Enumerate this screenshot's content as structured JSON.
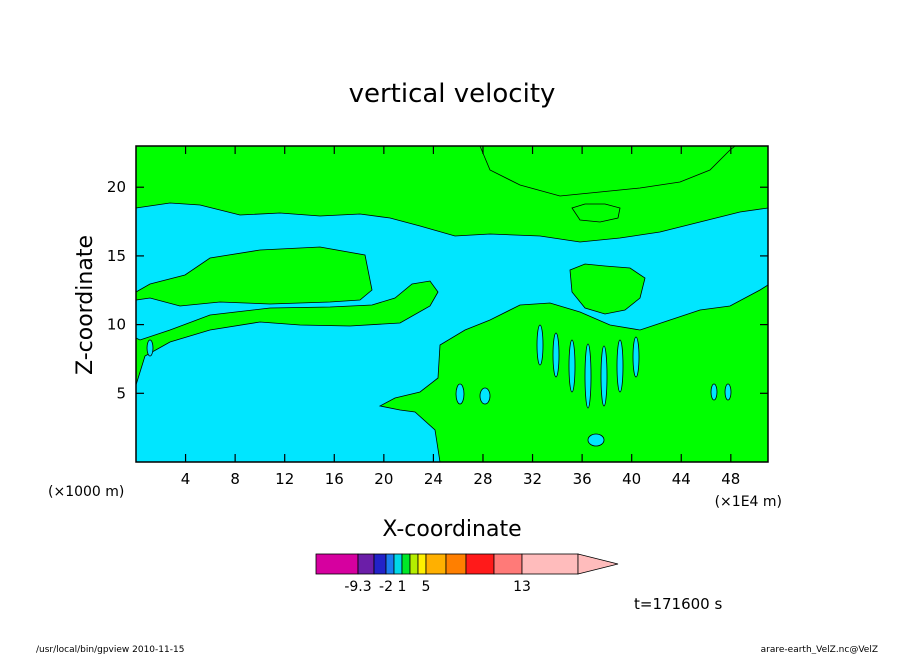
{
  "chart_data": {
    "type": "heatmap",
    "title": "vertical velocity",
    "xlabel": "X-coordinate",
    "ylabel": "Z-coordinate",
    "x_unit": "(×1000 m)",
    "x_scale_note": "(×1E4 m)",
    "xlim": [
      0,
      51
    ],
    "ylim": [
      0,
      23
    ],
    "x_ticks": [
      4,
      8,
      12,
      16,
      20,
      24,
      28,
      32,
      36,
      40,
      44,
      48
    ],
    "y_ticks": [
      5,
      10,
      15,
      20
    ],
    "time_label": "t=171600 s",
    "colorbar": {
      "colors": [
        "#d6009f",
        "#6b1ea8",
        "#2222c8",
        "#1a7cf0",
        "#00d8e8",
        "#00e828",
        "#b4ee00",
        "#fff000",
        "#ffb000",
        "#ff7f00",
        "#ff1a1a",
        "#ff7a78",
        "#ffbcbc"
      ],
      "tick_labels": [
        {
          "index": 1,
          "text": "-9.3"
        },
        {
          "index": 3,
          "text": "-2"
        },
        {
          "index": 5,
          "text": "1"
        },
        {
          "index": 8,
          "text": "5"
        },
        {
          "index": 12,
          "text": "13"
        }
      ]
    },
    "region_colors": {
      "negative": "#00e6ff",
      "positive": "#00ff00"
    }
  },
  "footer": {
    "left": "/usr/local/bin/gpview   2010-11-15",
    "right": "arare-earth_VelZ.nc@VelZ"
  }
}
